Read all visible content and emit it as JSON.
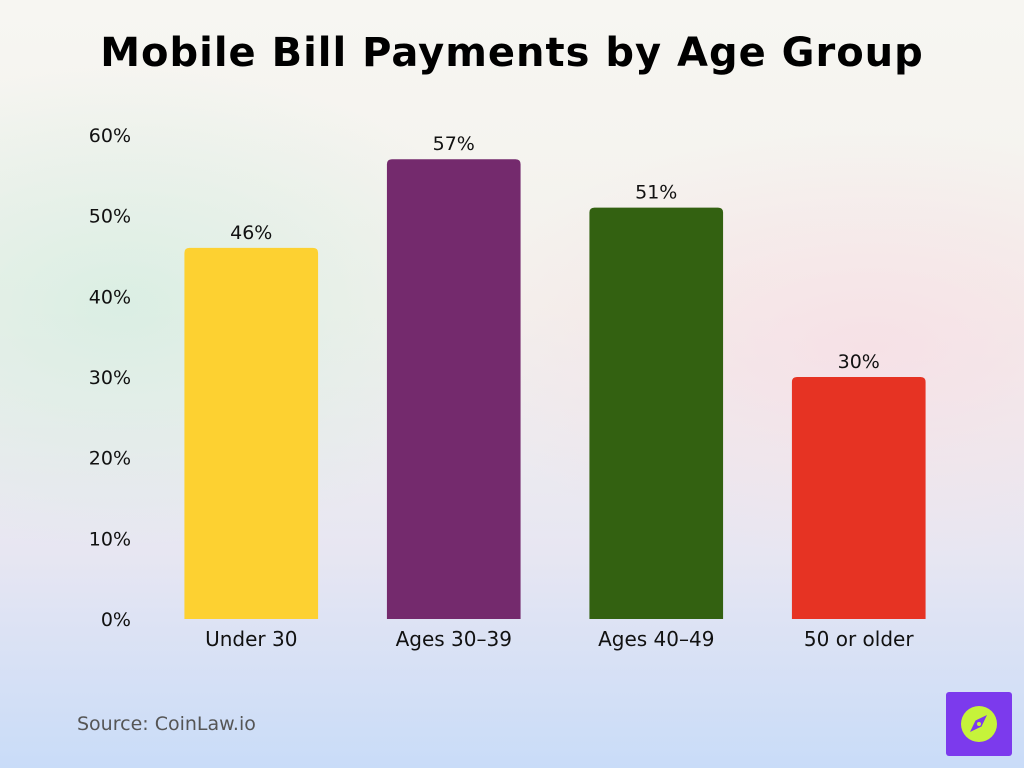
{
  "chart_data": {
    "type": "bar",
    "title": "Mobile Bill Payments by Age Group",
    "categories": [
      "Under 30",
      "Ages 30–39",
      "Ages 40–49",
      "50 or older"
    ],
    "values": [
      46,
      57,
      51,
      30
    ],
    "value_labels": [
      "46%",
      "57%",
      "51%",
      "30%"
    ],
    "colors": [
      "#fdd131",
      "#742a6d",
      "#336111",
      "#e63323"
    ],
    "ylim": [
      0,
      60
    ],
    "yticks": [
      0,
      10,
      20,
      30,
      40,
      50,
      60
    ],
    "ytick_labels": [
      "0%",
      "10%",
      "20%",
      "30%",
      "40%",
      "50%",
      "60%"
    ],
    "grid": false,
    "legend": "none"
  },
  "source": "Source: CoinLaw.io",
  "logo": {
    "icon": "compass-icon",
    "background": "#7c3aed",
    "circle": "#c6f33a"
  }
}
